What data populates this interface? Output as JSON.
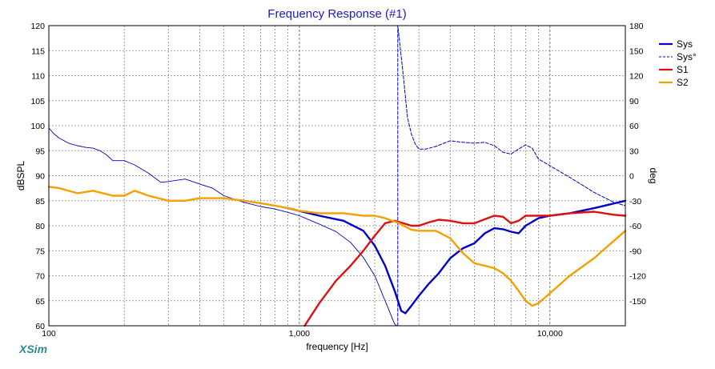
{
  "chart_data": {
    "type": "line",
    "title": "Frequency Response (#1)",
    "xlabel": "frequency [Hz]",
    "ylabel": "dBSPL",
    "y2label": "deg",
    "x_scale": "log",
    "xlim": [
      100,
      20000
    ],
    "ylim": [
      60,
      120
    ],
    "y2lim": [
      -180,
      180
    ],
    "x_ticks": [
      {
        "v": 100,
        "label": "100"
      },
      {
        "v": 1000,
        "label": "1,000"
      },
      {
        "v": 10000,
        "label": "10,000"
      }
    ],
    "y_ticks": [
      "60",
      "65",
      "70",
      "75",
      "80",
      "85",
      "90",
      "95",
      "100",
      "105",
      "110",
      "115",
      "120"
    ],
    "y2_ticks": [
      "-150",
      "-120",
      "-90",
      "-60",
      "-30",
      "0",
      "30",
      "60",
      "90",
      "120",
      "150",
      "180"
    ],
    "grid": true,
    "legend_position": "top-right",
    "series": [
      {
        "name": "Sys",
        "axis": "left",
        "color": "#0000cc",
        "style": "solid",
        "width": 2.4,
        "x": [
          900,
          1200,
          1500,
          1800,
          2000,
          2200,
          2400,
          2550,
          2650,
          2800,
          3000,
          3300,
          3600,
          4000,
          4500,
          5000,
          5500,
          6000,
          6500,
          7000,
          7500,
          8000,
          9000,
          10000,
          12000,
          15000,
          20000
        ],
        "y": [
          83.5,
          82,
          81,
          79,
          76,
          72,
          67,
          63,
          62.5,
          64,
          66,
          68.5,
          70.5,
          73.5,
          75.5,
          76.5,
          78.5,
          79.5,
          79.3,
          78.8,
          78.5,
          80,
          81.5,
          82,
          82.5,
          83.5,
          85
        ]
      },
      {
        "name": "Sys°",
        "axis": "right",
        "color": "#0000cc",
        "style": "thin",
        "width": 0.9,
        "x": [
          100,
          105,
          110,
          120,
          130,
          140,
          150,
          160,
          170,
          180,
          200,
          220,
          250,
          280,
          300,
          350,
          400,
          450,
          500,
          600,
          700,
          800,
          900,
          1000,
          1200,
          1400,
          1600,
          1800,
          2000,
          2200,
          2400,
          2450
        ],
        "y": [
          57,
          50,
          45,
          39,
          36,
          34,
          33,
          30,
          25,
          18,
          18,
          13,
          3,
          -8,
          -7,
          -4,
          -10,
          -15,
          -24,
          -32,
          -37,
          -40,
          -44,
          -48,
          -58,
          -67,
          -80,
          -98,
          -120,
          -150,
          -178,
          -180
        ]
      },
      {
        "name": "Sys°",
        "axis": "right",
        "color": "#0000cc",
        "style": "dashed",
        "width": 1,
        "x": [
          2470,
          2470,
          2600,
          2700,
          2800,
          2900,
          3000,
          3200,
          3500,
          4000,
          4500,
          5000,
          5500,
          6000,
          6500,
          7000,
          7500,
          8000,
          8500,
          9000,
          10000,
          12000,
          15000,
          18000,
          20000
        ],
        "y": [
          -180,
          180,
          120,
          70,
          50,
          38,
          32,
          32,
          35,
          42,
          40,
          39,
          40,
          36,
          28,
          26,
          32,
          37,
          33,
          20,
          12,
          -2,
          -20,
          -32,
          -36
        ]
      },
      {
        "name": "S1",
        "axis": "left",
        "color": "#dd1111",
        "style": "solid",
        "width": 2.4,
        "x": [
          1050,
          1200,
          1400,
          1600,
          1800,
          2000,
          2200,
          2400,
          2600,
          2800,
          3000,
          3300,
          3600,
          4000,
          4500,
          5000,
          5500,
          6000,
          6500,
          7000,
          7500,
          8000,
          9000,
          10000,
          12000,
          15000,
          18000,
          20000
        ],
        "y": [
          60,
          64.5,
          69,
          72,
          75,
          78,
          80.5,
          81,
          80.5,
          80,
          80,
          80.7,
          81.2,
          81,
          80.5,
          80.5,
          81.3,
          82,
          81.8,
          80.5,
          81,
          82,
          82,
          82,
          82.5,
          82.8,
          82.2,
          82
        ]
      },
      {
        "name": "S2",
        "axis": "left",
        "color": "#f5a000",
        "style": "solid",
        "width": 2.4,
        "x": [
          100,
          110,
          130,
          150,
          180,
          200,
          220,
          250,
          300,
          350,
          400,
          450,
          500,
          600,
          700,
          800,
          900,
          1000,
          1200,
          1500,
          1800,
          2000,
          2200,
          2500,
          2800,
          3000,
          3500,
          4000,
          4500,
          5000,
          5500,
          6000,
          6500,
          7000,
          7500,
          8000,
          8500,
          9000,
          10000,
          12000,
          15000,
          20000
        ],
        "y": [
          87.8,
          87.5,
          86.5,
          87,
          86,
          86,
          87,
          86,
          85,
          85,
          85.5,
          85.5,
          85.5,
          85,
          84.5,
          84,
          83.5,
          83,
          82.5,
          82.5,
          82,
          82,
          81.5,
          80.5,
          79.2,
          79,
          79,
          77.5,
          74.5,
          72.5,
          72,
          71.5,
          70.5,
          69,
          67,
          65,
          64,
          64.5,
          66.5,
          70,
          73.5,
          79
        ]
      }
    ],
    "legend": [
      "Sys",
      "Sys°",
      "S1",
      "S2"
    ]
  },
  "branding": {
    "app_name": "XSim"
  }
}
